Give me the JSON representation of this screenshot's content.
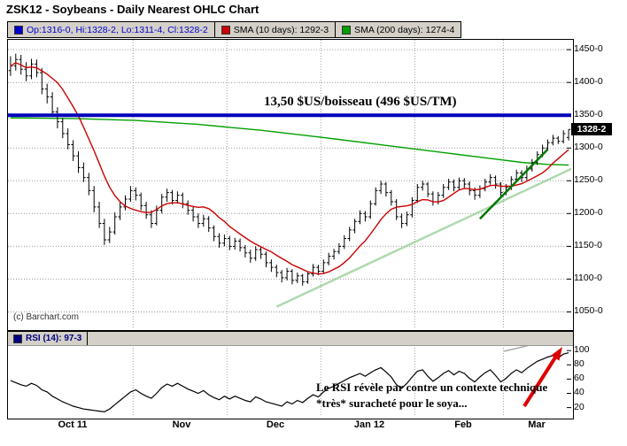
{
  "header": {
    "title": "ZSK12 - Soybeans - Daily Nearest OHLC Chart"
  },
  "legend": {
    "quote": "Op:1316-0, Hi:1328-2, Lo:1311-4, Cl:1328-2",
    "sma10": "SMA (10 days): 1292-3",
    "sma200": "SMA (200 days): 1274-4",
    "colors": {
      "quote": "#0000cc",
      "sma10": "#cc0000",
      "sma200": "#00a000"
    }
  },
  "rsi_legend": {
    "label": "RSI (14): 97-3",
    "color": "#000080"
  },
  "watermark": "(c) Barchart.com",
  "annotations": {
    "price_line_label": "13,50 $US/boisseau (496 $US/TM)",
    "rsi_note_line1": "Le RSI révèle par contre un contexte technique",
    "rsi_note_line2": "*très* suracheté pour le soya...",
    "last_price_label": "1328-2"
  },
  "chart_data": {
    "type": "ohlc",
    "title": "ZSK12 - Soybeans - Daily Nearest OHLC Chart",
    "y_domain": [
      1025,
      1465
    ],
    "y_ticks": [
      {
        "v": 1450,
        "label": "1450-0"
      },
      {
        "v": 1400,
        "label": "1400-0"
      },
      {
        "v": 1350,
        "label": "1350-0"
      },
      {
        "v": 1300,
        "label": "1300-0"
      },
      {
        "v": 1250,
        "label": "1250-0"
      },
      {
        "v": 1200,
        "label": "1200-0"
      },
      {
        "v": 1150,
        "label": "1150-0"
      },
      {
        "v": 1100,
        "label": "1100-0"
      },
      {
        "v": 1050,
        "label": "1050-0"
      }
    ],
    "months": {
      "gridline_bars": [
        24,
        42,
        60,
        78,
        95
      ],
      "labels": [
        {
          "text": "Oct 11",
          "bar": 12
        },
        {
          "text": "Nov",
          "bar": 33
        },
        {
          "text": "Dec",
          "bar": 51
        },
        {
          "text": "Jan 12",
          "bar": 69
        },
        {
          "text": "Feb",
          "bar": 87
        },
        {
          "text": "Mar",
          "bar": 101
        }
      ]
    },
    "bars": [
      [
        1418,
        1440,
        1410,
        1425
      ],
      [
        1425,
        1444,
        1418,
        1435
      ],
      [
        1435,
        1442,
        1412,
        1420
      ],
      [
        1420,
        1431,
        1402,
        1410
      ],
      [
        1410,
        1436,
        1405,
        1428
      ],
      [
        1428,
        1435,
        1408,
        1415
      ],
      [
        1415,
        1422,
        1382,
        1390
      ],
      [
        1390,
        1398,
        1368,
        1378
      ],
      [
        1378,
        1385,
        1348,
        1355
      ],
      [
        1355,
        1362,
        1330,
        1340
      ],
      [
        1340,
        1346,
        1315,
        1322
      ],
      [
        1322,
        1330,
        1298,
        1305
      ],
      [
        1305,
        1312,
        1280,
        1288
      ],
      [
        1288,
        1295,
        1262,
        1270
      ],
      [
        1270,
        1278,
        1248,
        1255
      ],
      [
        1255,
        1262,
        1228,
        1235
      ],
      [
        1235,
        1242,
        1202,
        1210
      ],
      [
        1210,
        1218,
        1178,
        1185
      ],
      [
        1185,
        1192,
        1152,
        1160
      ],
      [
        1160,
        1180,
        1155,
        1172
      ],
      [
        1172,
        1202,
        1168,
        1195
      ],
      [
        1195,
        1218,
        1190,
        1210
      ],
      [
        1210,
        1228,
        1205,
        1222
      ],
      [
        1222,
        1242,
        1218,
        1235
      ],
      [
        1235,
        1240,
        1220,
        1228
      ],
      [
        1228,
        1232,
        1205,
        1212
      ],
      [
        1212,
        1218,
        1192,
        1198
      ],
      [
        1198,
        1205,
        1178,
        1185
      ],
      [
        1185,
        1212,
        1182,
        1205
      ],
      [
        1205,
        1230,
        1200,
        1225
      ],
      [
        1225,
        1238,
        1218,
        1232
      ],
      [
        1232,
        1236,
        1214,
        1220
      ],
      [
        1220,
        1234,
        1215,
        1228
      ],
      [
        1228,
        1232,
        1208,
        1215
      ],
      [
        1215,
        1220,
        1198,
        1205
      ],
      [
        1205,
        1210,
        1188,
        1195
      ],
      [
        1195,
        1200,
        1178,
        1185
      ],
      [
        1185,
        1198,
        1180,
        1192
      ],
      [
        1192,
        1196,
        1172,
        1178
      ],
      [
        1178,
        1182,
        1158,
        1165
      ],
      [
        1165,
        1170,
        1148,
        1155
      ],
      [
        1155,
        1168,
        1150,
        1162
      ],
      [
        1162,
        1166,
        1144,
        1150
      ],
      [
        1150,
        1163,
        1145,
        1158
      ],
      [
        1158,
        1162,
        1142,
        1148
      ],
      [
        1148,
        1152,
        1133,
        1140
      ],
      [
        1140,
        1145,
        1125,
        1132
      ],
      [
        1132,
        1150,
        1128,
        1145
      ],
      [
        1145,
        1149,
        1131,
        1138
      ],
      [
        1138,
        1142,
        1118,
        1125
      ],
      [
        1125,
        1130,
        1111,
        1118
      ],
      [
        1118,
        1122,
        1103,
        1110
      ],
      [
        1110,
        1114,
        1095,
        1102
      ],
      [
        1102,
        1117,
        1098,
        1112
      ],
      [
        1112,
        1115,
        1092,
        1098
      ],
      [
        1098,
        1110,
        1094,
        1105
      ],
      [
        1105,
        1108,
        1090,
        1096
      ],
      [
        1096,
        1112,
        1093,
        1108
      ],
      [
        1108,
        1123,
        1104,
        1118
      ],
      [
        1118,
        1122,
        1106,
        1112
      ],
      [
        1112,
        1130,
        1108,
        1125
      ],
      [
        1125,
        1140,
        1121,
        1135
      ],
      [
        1135,
        1146,
        1130,
        1142
      ],
      [
        1142,
        1155,
        1138,
        1150
      ],
      [
        1150,
        1167,
        1146,
        1162
      ],
      [
        1162,
        1180,
        1158,
        1175
      ],
      [
        1175,
        1192,
        1170,
        1188
      ],
      [
        1188,
        1205,
        1184,
        1200
      ],
      [
        1200,
        1204,
        1188,
        1195
      ],
      [
        1195,
        1220,
        1192,
        1215
      ],
      [
        1215,
        1240,
        1212,
        1235
      ],
      [
        1235,
        1250,
        1230,
        1245
      ],
      [
        1245,
        1248,
        1226,
        1232
      ],
      [
        1232,
        1236,
        1212,
        1218
      ],
      [
        1218,
        1222,
        1190,
        1195
      ],
      [
        1195,
        1200,
        1178,
        1185
      ],
      [
        1185,
        1203,
        1181,
        1198
      ],
      [
        1198,
        1225,
        1194,
        1220
      ],
      [
        1220,
        1245,
        1216,
        1240
      ],
      [
        1240,
        1250,
        1235,
        1245
      ],
      [
        1245,
        1248,
        1225,
        1230
      ],
      [
        1230,
        1234,
        1212,
        1218
      ],
      [
        1218,
        1233,
        1214,
        1228
      ],
      [
        1228,
        1245,
        1224,
        1240
      ],
      [
        1240,
        1253,
        1236,
        1248
      ],
      [
        1248,
        1252,
        1234,
        1240
      ],
      [
        1240,
        1255,
        1236,
        1250
      ],
      [
        1250,
        1254,
        1238,
        1245
      ],
      [
        1245,
        1249,
        1228,
        1235
      ],
      [
        1235,
        1240,
        1221,
        1228
      ],
      [
        1228,
        1243,
        1224,
        1238
      ],
      [
        1238,
        1253,
        1234,
        1248
      ],
      [
        1248,
        1260,
        1244,
        1255
      ],
      [
        1255,
        1258,
        1238,
        1245
      ],
      [
        1245,
        1248,
        1226,
        1232
      ],
      [
        1232,
        1245,
        1228,
        1240
      ],
      [
        1240,
        1257,
        1236,
        1252
      ],
      [
        1252,
        1267,
        1248,
        1262
      ],
      [
        1262,
        1266,
        1248,
        1255
      ],
      [
        1255,
        1273,
        1251,
        1268
      ],
      [
        1268,
        1283,
        1264,
        1278
      ],
      [
        1278,
        1295,
        1274,
        1290
      ],
      [
        1290,
        1305,
        1286,
        1300
      ],
      [
        1300,
        1313,
        1296,
        1308
      ],
      [
        1308,
        1320,
        1304,
        1315
      ],
      [
        1315,
        1318,
        1306,
        1310
      ],
      [
        1310,
        1327,
        1307,
        1322
      ],
      [
        1316,
        1328.25,
        1311.5,
        1328.25
      ]
    ],
    "sma10_current": 1292.375,
    "sma200_current": 1274.5,
    "sma200_points": [
      [
        0,
        1346
      ],
      [
        12,
        1345
      ],
      [
        24,
        1342
      ],
      [
        36,
        1336
      ],
      [
        48,
        1327
      ],
      [
        60,
        1316
      ],
      [
        72,
        1304
      ],
      [
        84,
        1292
      ],
      [
        92,
        1284
      ],
      [
        98,
        1278
      ],
      [
        103,
        1275
      ],
      [
        107,
        1274
      ]
    ],
    "overlays": {
      "resistance_line": {
        "price": 1350,
        "color": "#0000bb",
        "label": "13,50 $US/boisseau (496 $US/TM)"
      },
      "trendline_long": {
        "from": [
          51,
          1058
        ],
        "to": [
          108,
          1270
        ],
        "color": "#8fc98f"
      },
      "trendline_short": {
        "from": [
          90,
          1192
        ],
        "to": [
          103,
          1298
        ],
        "color": "#007700"
      }
    },
    "rsi": {
      "label": "RSI (14): 97-3",
      "current": 97.375,
      "domain": [
        12,
        104
      ],
      "ticks": [
        {
          "v": 100,
          "label": "100"
        },
        {
          "v": 80,
          "label": "80"
        },
        {
          "v": 60,
          "label": "60"
        },
        {
          "v": 40,
          "label": "40"
        },
        {
          "v": 20,
          "label": "20"
        }
      ],
      "values": [
        58,
        55,
        52,
        50,
        54,
        51,
        45,
        42,
        36,
        32,
        28,
        25,
        22,
        20,
        18,
        17,
        16,
        15,
        14,
        18,
        24,
        30,
        36,
        42,
        45,
        40,
        36,
        33,
        40,
        48,
        53,
        50,
        54,
        50,
        46,
        43,
        40,
        44,
        38,
        34,
        31,
        36,
        32,
        36,
        33,
        30,
        28,
        35,
        32,
        28,
        26,
        24,
        22,
        28,
        25,
        30,
        27,
        33,
        38,
        35,
        42,
        47,
        50,
        54,
        58,
        62,
        65,
        68,
        64,
        69,
        73,
        76,
        70,
        63,
        52,
        47,
        54,
        63,
        71,
        73,
        64,
        57,
        62,
        68,
        72,
        66,
        71,
        68,
        61,
        56,
        63,
        69,
        73,
        65,
        56,
        61,
        68,
        73,
        69,
        75,
        80,
        85,
        88,
        91,
        93,
        90,
        95,
        97
      ]
    }
  }
}
